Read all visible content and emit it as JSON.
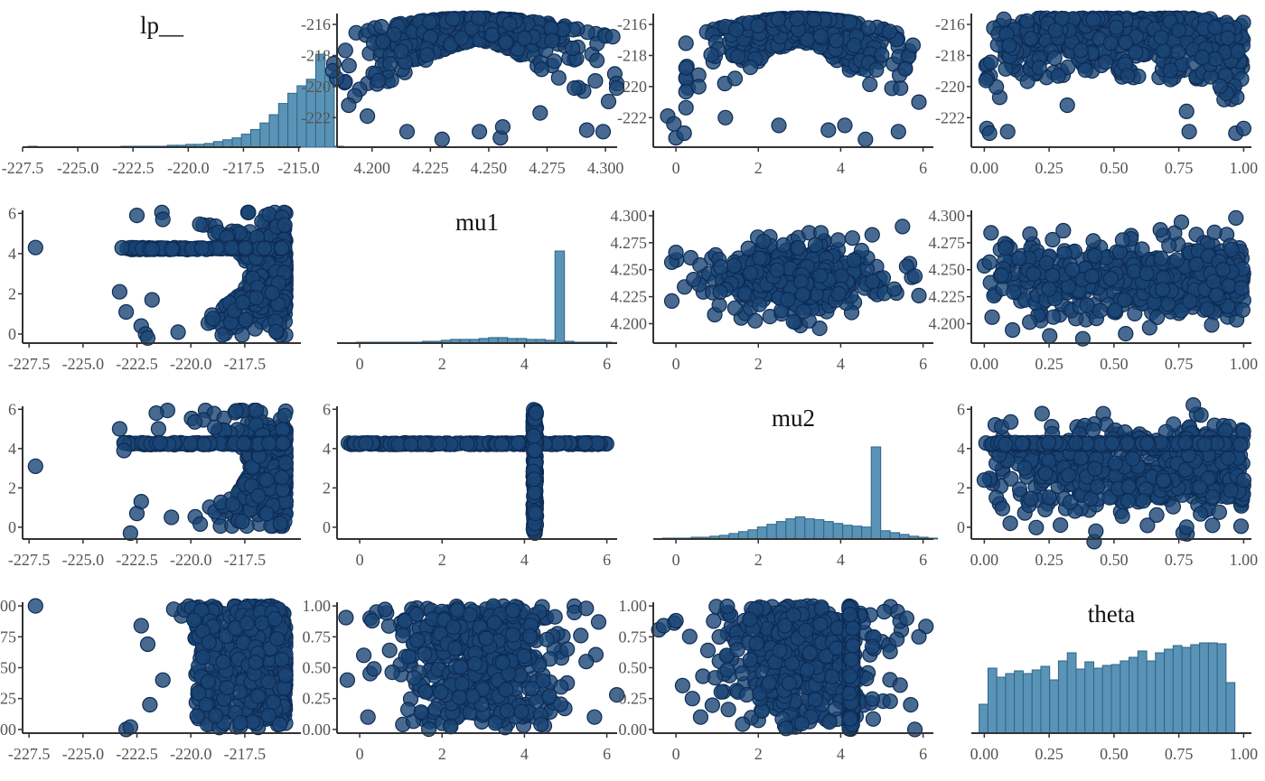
{
  "colors": {
    "point_fill": "#1a4574",
    "point_stroke": "#0d2c55",
    "bar_fill": "#5a93b6",
    "bar_stroke": "#2c6688",
    "axis": "#333333",
    "tick_label": "#555555"
  },
  "chart_data": [
    {
      "type": "histogram",
      "row": 0,
      "col": 0,
      "title": "lp__",
      "xlim": [
        -227.5,
        -214.9
      ],
      "x_ticks": [
        "-227.5",
        "-225.0",
        "-222.5",
        "-220.0",
        "-217.5",
        "-215.0"
      ],
      "x_tick_values": [
        -227.5,
        -225.0,
        -222.5,
        -220.0,
        -217.5,
        -215.0
      ],
      "bin_start": -227.25,
      "bin_width": 0.42,
      "counts": [
        1,
        0,
        0,
        0,
        0,
        0,
        0,
        0,
        0,
        0,
        1,
        1,
        1,
        1,
        1,
        2,
        2,
        3,
        3,
        4,
        6,
        8,
        10,
        14,
        19,
        26,
        35,
        47,
        58,
        66,
        73,
        100,
        78,
        1
      ]
    },
    {
      "type": "scatter",
      "row": 0,
      "col": 1,
      "x_var": "mu1",
      "y_var": "lp__",
      "xlim": [
        4.185,
        4.305
      ],
      "ylim": [
        -223.9,
        -215.3
      ],
      "x_ticks": [
        "4.200",
        "4.225",
        "4.250",
        "4.275",
        "4.300"
      ],
      "x_tick_values": [
        4.2,
        4.225,
        4.25,
        4.275,
        4.3
      ],
      "y_ticks": [
        "-216",
        "-218",
        "-220",
        "-222"
      ],
      "y_tick_values": [
        -216,
        -218,
        -220,
        -222
      ],
      "cloud": {
        "n": 500,
        "shape": "arch",
        "x_center": 4.244,
        "x_spread": 0.032,
        "y_top": -215.6,
        "depth": 4.4,
        "seed": 11
      },
      "outliers": [
        [
          4.19,
          -221.2
        ],
        [
          4.198,
          -221.9
        ],
        [
          4.215,
          -222.9
        ],
        [
          4.23,
          -223.4
        ],
        [
          4.246,
          -222.9
        ],
        [
          4.255,
          -223.3
        ],
        [
          4.256,
          -222.6
        ],
        [
          4.272,
          -221.7
        ],
        [
          4.292,
          -222.8
        ],
        [
          4.299,
          -222.9
        ]
      ]
    },
    {
      "type": "scatter",
      "row": 0,
      "col": 2,
      "x_var": "mu2",
      "y_var": "lp__",
      "xlim": [
        -0.55,
        6.25
      ],
      "ylim": [
        -223.9,
        -215.3
      ],
      "x_ticks": [
        "0",
        "2",
        "4",
        "6"
      ],
      "x_tick_values": [
        0,
        2,
        4,
        6
      ],
      "y_ticks": [
        "-216",
        "-218",
        "-220",
        "-222"
      ],
      "y_tick_values": [
        -216,
        -218,
        -220,
        -222
      ],
      "cloud": {
        "n": 480,
        "shape": "arch",
        "x_center": 3.0,
        "x_spread": 1.45,
        "y_top": -215.6,
        "depth": 4.6,
        "seed": 23
      },
      "outliers": [
        [
          -0.2,
          -221.9
        ],
        [
          -0.05,
          -222.4
        ],
        [
          0.0,
          -223.3
        ],
        [
          0.2,
          -223.0
        ],
        [
          1.2,
          -222.0
        ],
        [
          2.5,
          -222.5
        ],
        [
          3.7,
          -222.8
        ],
        [
          4.1,
          -222.5
        ],
        [
          4.6,
          -223.4
        ],
        [
          5.4,
          -222.9
        ],
        [
          5.9,
          -221.0
        ]
      ]
    },
    {
      "type": "scatter",
      "row": 0,
      "col": 3,
      "x_var": "theta",
      "y_var": "lp__",
      "xlim": [
        -0.05,
        1.03
      ],
      "ylim": [
        -223.9,
        -215.3
      ],
      "x_ticks": [
        "0.00",
        "0.25",
        "0.50",
        "0.75",
        "1.00"
      ],
      "x_tick_values": [
        0.0,
        0.25,
        0.5,
        0.75,
        1.0
      ],
      "y_ticks": [
        "-216",
        "-218",
        "-220",
        "-222"
      ],
      "y_tick_values": [
        -216,
        -218,
        -220,
        -222
      ],
      "cloud": {
        "n": 520,
        "shape": "bowl",
        "seed": 37
      },
      "outliers": [
        [
          0.01,
          -222.7
        ],
        [
          0.02,
          -223.0
        ],
        [
          0.09,
          -222.9
        ],
        [
          0.32,
          -221.2
        ],
        [
          0.78,
          -221.6
        ],
        [
          0.79,
          -222.9
        ],
        [
          0.97,
          -223.0
        ],
        [
          1.0,
          -222.7
        ]
      ]
    },
    {
      "type": "scatter",
      "row": 1,
      "col": 0,
      "x_var": "lp__",
      "y_var": "mu1",
      "xlim": [
        -227.8,
        -214.9
      ],
      "ylim": [
        -0.45,
        6.15
      ],
      "x_ticks": [
        "-227.5",
        "-225.0",
        "-222.5",
        "-220.0",
        "-217.5"
      ],
      "x_tick_values": [
        -227.5,
        -225.0,
        -222.5,
        -220.0,
        -217.5
      ],
      "y_ticks": [
        "0",
        "2",
        "4",
        "6"
      ],
      "y_tick_values": [
        0,
        2,
        4,
        6
      ],
      "cloud": {
        "n": 460,
        "shape": "sideways",
        "y_center": 3.0,
        "y_spread": 2.9,
        "x_right": -215.6,
        "depth": 4.2,
        "seed": 41
      },
      "band": {
        "value": 4.25,
        "from": -223.2,
        "to": -215.6,
        "n": 90,
        "jitter": 0.05
      },
      "outliers": [
        [
          -227.2,
          4.3
        ],
        [
          -223.3,
          2.1
        ],
        [
          -222.5,
          5.9
        ],
        [
          -222.3,
          0.4
        ],
        [
          -222.1,
          0.0
        ],
        [
          -223.0,
          1.1
        ],
        [
          -221.8,
          1.7
        ],
        [
          -222.0,
          -0.2
        ],
        [
          -221.3,
          5.7
        ]
      ]
    },
    {
      "type": "histogram",
      "row": 1,
      "col": 1,
      "title": "mu1",
      "xlim": [
        -0.55,
        6.25
      ],
      "x_ticks": [
        "0",
        "2",
        "4",
        "6"
      ],
      "x_tick_values": [
        0,
        2,
        4,
        6
      ],
      "bin_start": -0.55,
      "bin_width": 0.23,
      "counts": [
        0,
        0,
        1,
        1,
        1,
        1,
        1,
        1,
        1,
        2,
        2,
        3,
        4,
        4,
        4,
        5,
        6,
        6,
        5,
        5,
        4,
        4,
        3,
        100,
        2,
        1,
        1,
        1,
        1,
        0
      ]
    },
    {
      "type": "scatter",
      "row": 1,
      "col": 2,
      "x_var": "mu2",
      "y_var": "mu1",
      "xlim": [
        -0.55,
        6.25
      ],
      "ylim": [
        4.182,
        4.305
      ],
      "x_ticks": [
        "0",
        "2",
        "4",
        "6"
      ],
      "x_tick_values": [
        0,
        2,
        4,
        6
      ],
      "y_ticks": [
        "4.300",
        "4.275",
        "4.250",
        "4.225",
        "4.200"
      ],
      "y_tick_values": [
        4.3,
        4.275,
        4.25,
        4.225,
        4.2
      ],
      "cloud": {
        "n": 520,
        "shape": "ellipse",
        "x_center": 2.9,
        "x_spread": 1.35,
        "y_center": 4.242,
        "y_spread": 0.022,
        "seed": 53
      },
      "outliers": [
        [
          -0.1,
          4.221
        ],
        [
          -0.1,
          4.257
        ],
        [
          0.0,
          4.266
        ],
        [
          5.6,
          4.253
        ],
        [
          5.9,
          4.226
        ],
        [
          5.5,
          4.29
        ],
        [
          5.3,
          4.232
        ],
        [
          5.8,
          4.244
        ]
      ]
    },
    {
      "type": "scatter",
      "row": 1,
      "col": 3,
      "x_var": "theta",
      "y_var": "mu1",
      "xlim": [
        -0.05,
        1.03
      ],
      "ylim": [
        4.182,
        4.305
      ],
      "x_ticks": [
        "0.00",
        "0.25",
        "0.50",
        "0.75",
        "1.00"
      ],
      "x_tick_values": [
        0.0,
        0.25,
        0.5,
        0.75,
        1.0
      ],
      "y_ticks": [
        "4.300",
        "4.275",
        "4.250",
        "4.225",
        "4.200"
      ],
      "y_tick_values": [
        4.3,
        4.275,
        4.25,
        4.225,
        4.2
      ],
      "cloud": {
        "n": 560,
        "shape": "uniform_x",
        "x_min": 0.0,
        "x_max": 1.0,
        "x_skew": 1.6,
        "y_center": 4.241,
        "y_spread": 0.023,
        "seed": 67
      },
      "outliers": [
        [
          0.02,
          4.257
        ],
        [
          0.03,
          4.206
        ],
        [
          0.38,
          4.186
        ],
        [
          0.97,
          4.298
        ],
        [
          0.76,
          4.294
        ]
      ]
    },
    {
      "type": "scatter",
      "row": 2,
      "col": 0,
      "x_var": "lp__",
      "y_var": "mu2",
      "xlim": [
        -227.8,
        -214.9
      ],
      "ylim": [
        -0.6,
        6.15
      ],
      "x_ticks": [
        "-227.5",
        "-225.0",
        "-222.5",
        "-220.0",
        "-217.5"
      ],
      "x_tick_values": [
        -227.5,
        -225.0,
        -222.5,
        -220.0,
        -217.5
      ],
      "y_ticks": [
        "0",
        "2",
        "4",
        "6"
      ],
      "y_tick_values": [
        0,
        2,
        4,
        6
      ],
      "cloud": {
        "n": 460,
        "shape": "sideways",
        "y_center": 3.0,
        "y_spread": 2.8,
        "x_right": -215.6,
        "depth": 4.2,
        "seed": 71
      },
      "band": {
        "value": 4.25,
        "from": -223.3,
        "to": -215.6,
        "n": 100,
        "jitter": 0.05
      },
      "outliers": [
        [
          -227.2,
          3.1
        ],
        [
          -223.3,
          5.0
        ],
        [
          -223.1,
          3.9
        ],
        [
          -222.8,
          -0.3
        ],
        [
          -222.5,
          0.7
        ],
        [
          -222.3,
          1.3
        ],
        [
          -221.6,
          5.8
        ],
        [
          -221.5,
          5.0
        ],
        [
          -220.9,
          0.5
        ]
      ]
    },
    {
      "type": "scatter",
      "row": 2,
      "col": 1,
      "x_var": "mu1",
      "y_var": "mu2",
      "xlim": [
        -0.55,
        6.25
      ],
      "ylim": [
        -0.6,
        6.15
      ],
      "x_ticks": [
        "0",
        "2",
        "4",
        "6"
      ],
      "x_tick_values": [
        0,
        2,
        4,
        6
      ],
      "y_ticks": [
        "0",
        "2",
        "4",
        "6"
      ],
      "y_tick_values": [
        0,
        2,
        4,
        6
      ],
      "cross": {
        "hline": {
          "y": 4.25,
          "x_from": -0.4,
          "x_to": 6.0,
          "n": 220,
          "jitter": 0.04
        },
        "vline": {
          "x": 4.25,
          "y_from": -0.3,
          "y_to": 6.0,
          "n": 160,
          "jitter": 0.04
        }
      }
    },
    {
      "type": "histogram",
      "row": 2,
      "col": 2,
      "title": "mu2",
      "xlim": [
        -0.55,
        6.25
      ],
      "x_ticks": [
        "0",
        "2",
        "4",
        "6"
      ],
      "x_tick_values": [
        0,
        2,
        4,
        6
      ],
      "bin_start": -0.55,
      "bin_width": 0.23,
      "counts": [
        0,
        1,
        1,
        1,
        2,
        2,
        3,
        4,
        6,
        8,
        10,
        13,
        16,
        19,
        22,
        24,
        22,
        21,
        19,
        17,
        15,
        14,
        13,
        100,
        9,
        7,
        5,
        3,
        2,
        1
      ]
    },
    {
      "type": "scatter",
      "row": 2,
      "col": 3,
      "x_var": "theta",
      "y_var": "mu2",
      "xlim": [
        -0.05,
        1.03
      ],
      "ylim": [
        -0.6,
        6.15
      ],
      "x_ticks": [
        "0.00",
        "0.25",
        "0.50",
        "0.75",
        "1.00"
      ],
      "x_tick_values": [
        0.0,
        0.25,
        0.5,
        0.75,
        1.0
      ],
      "y_ticks": [
        "0",
        "2",
        "4",
        "6"
      ],
      "y_tick_values": [
        0,
        2,
        4,
        6
      ],
      "cloud": {
        "n": 560,
        "shape": "uniform_x",
        "x_min": 0.0,
        "x_max": 1.0,
        "x_skew": 1.6,
        "y_center": 3.0,
        "y_spread": 1.6,
        "seed": 83
      },
      "band": {
        "value": 4.25,
        "axis": "y",
        "from": 0.0,
        "to": 1.0,
        "n": 150,
        "jitter": 0.06
      },
      "outliers": [
        [
          0.0,
          2.4
        ],
        [
          0.07,
          0.95
        ],
        [
          0.1,
          0.2
        ],
        [
          0.43,
          -0.2
        ],
        [
          0.78,
          0.0
        ],
        [
          0.88,
          0.1
        ],
        [
          0.99,
          0.05
        ],
        [
          1.0,
          2.4
        ]
      ]
    },
    {
      "type": "scatter",
      "row": 3,
      "col": 0,
      "x_var": "lp__",
      "y_var": "theta",
      "xlim": [
        -227.8,
        -214.9
      ],
      "ylim": [
        -0.03,
        1.03
      ],
      "x_ticks": [
        "-227.5",
        "-225.0",
        "-222.5",
        "-220.0",
        "-217.5"
      ],
      "x_tick_values": [
        -227.5,
        -225.0,
        -222.5,
        -220.0,
        -217.5
      ],
      "y_ticks": [
        "1.00",
        "0.75",
        "0.50",
        "0.25",
        "0.00"
      ],
      "y_tick_values": [
        1.0,
        0.75,
        0.5,
        0.25,
        0.0
      ],
      "cloud": {
        "n": 540,
        "shape": "lp_theta",
        "seed": 97
      },
      "outliers": [
        [
          -227.2,
          1.0
        ],
        [
          -223.0,
          0.0
        ],
        [
          -222.8,
          0.02
        ],
        [
          -222.3,
          0.84
        ],
        [
          -222.0,
          0.69
        ],
        [
          -221.9,
          0.2
        ],
        [
          -221.3,
          0.4
        ]
      ]
    },
    {
      "type": "scatter",
      "row": 3,
      "col": 1,
      "x_var": "mu1",
      "y_var": "theta",
      "xlim": [
        -0.55,
        6.25
      ],
      "ylim": [
        -0.03,
        1.03
      ],
      "x_ticks": [
        "0",
        "2",
        "4",
        "6"
      ],
      "x_tick_values": [
        0,
        2,
        4,
        6
      ],
      "y_ticks": [
        "1.00",
        "0.75",
        "0.50",
        "0.25",
        "0.00"
      ],
      "y_tick_values": [
        1.0,
        0.75,
        0.5,
        0.25,
        0.0
      ],
      "cloud": {
        "n": 520,
        "shape": "ellipse_u",
        "x_center": 2.9,
        "x_spread": 1.35,
        "seed": 101
      },
      "outliers": [
        [
          -0.3,
          0.4
        ],
        [
          0.1,
          0.6
        ],
        [
          0.2,
          0.1
        ],
        [
          5.5,
          0.55
        ],
        [
          5.8,
          0.87
        ],
        [
          5.5,
          0.98
        ],
        [
          5.7,
          0.1
        ],
        [
          0.3,
          0.88
        ]
      ]
    },
    {
      "type": "scatter",
      "row": 3,
      "col": 2,
      "x_var": "mu2",
      "y_var": "theta",
      "xlim": [
        -0.55,
        6.25
      ],
      "ylim": [
        -0.03,
        1.03
      ],
      "x_ticks": [
        "0",
        "2",
        "4",
        "6"
      ],
      "x_tick_values": [
        0,
        2,
        4,
        6
      ],
      "y_ticks": [
        "1.00",
        "0.75",
        "0.50",
        "0.25",
        "0.00"
      ],
      "y_tick_values": [
        1.0,
        0.75,
        0.5,
        0.25,
        0.0
      ],
      "cloud": {
        "n": 520,
        "shape": "ellipse_u",
        "x_center": 3.0,
        "x_spread": 1.3,
        "seed": 113
      },
      "band": {
        "value": 4.25,
        "axis": "x",
        "from": 0.0,
        "to": 1.0,
        "n": 170,
        "jitter": 0.05
      },
      "outliers": [
        [
          -0.3,
          0.84
        ],
        [
          0.0,
          0.88
        ],
        [
          0.4,
          0.25
        ],
        [
          0.6,
          0.1
        ],
        [
          5.6,
          0.9
        ],
        [
          5.9,
          0.75
        ],
        [
          5.8,
          0.0
        ],
        [
          5.2,
          0.63
        ]
      ]
    },
    {
      "type": "histogram",
      "row": 3,
      "col": 3,
      "title": "theta",
      "xlim": [
        -0.05,
        1.03
      ],
      "x_ticks": [
        "0.00",
        "0.25",
        "0.50",
        "0.75",
        "1.00"
      ],
      "x_tick_values": [
        0.0,
        0.25,
        0.5,
        0.75,
        1.0
      ],
      "bin_start": -0.02,
      "bin_width": 0.034,
      "counts": [
        32,
        72,
        62,
        66,
        69,
        66,
        70,
        74,
        59,
        80,
        89,
        71,
        79,
        72,
        75,
        76,
        80,
        84,
        91,
        80,
        89,
        93,
        97,
        95,
        98,
        100,
        100,
        99,
        56
      ]
    }
  ]
}
